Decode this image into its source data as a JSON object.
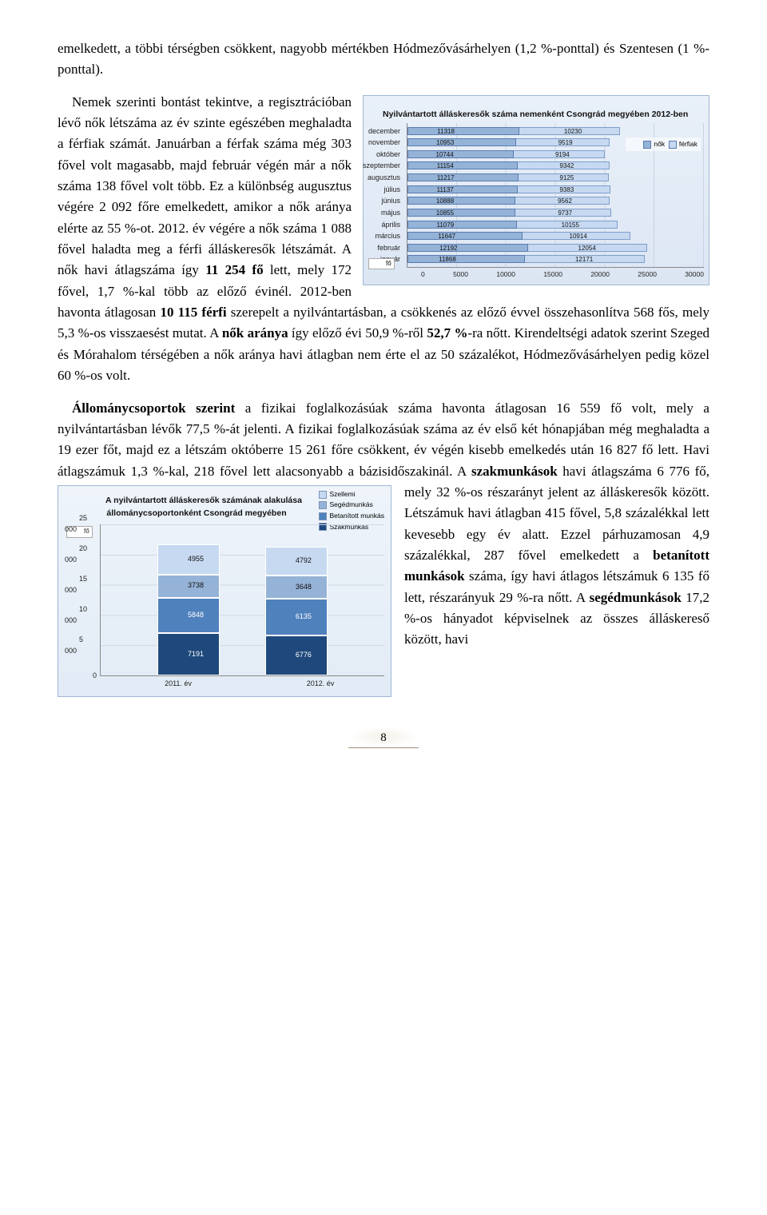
{
  "para1": "emelkedett, a többi térségben csökkent, nagyobb mértékben Hódmezővásárhelyen (1,2 %-ponttal) és Szentesen (1 %-ponttal).",
  "para2_lead": "Nemek szerinti bontást tekintve, a regisztrációban lévő nők létszáma az év szinte egészében meghaladta a férfiak számát. Januárban a férfak száma még 303 fővel volt magasabb, majd február végén már a nők száma 138 fővel volt több. Ez a különbség augusztus végére 2 092 főre emelkedett, amikor a nők aránya elérte az 55 %-ot. 2012. év végére a nők száma 1 088 fővel haladta meg a férfi álláskeresők létszámát. A nők havi átlagszáma így ",
  "para2_b1": "11 254 fő",
  "para2_mid": " lett, mely 172 fővel, 1,7 %-kal több az előző évinél. 2012-ben havonta átlagosan ",
  "para2_b2": "10 115 férfi",
  "para2_mid2": " szerepelt a nyilvántartásban, a csökkenés az előző évvel összehasonlítva 568 fős, mely 5,3 %-os visszaesést mutat. A ",
  "para2_b3": "nők aránya",
  "para2_mid3": " így előző évi 50,9 %-ről ",
  "para2_b4": "52,7 %",
  "para2_tail": "-ra nőtt. Kirendeltségi adatok szerint Szeged és Mórahalom térségében a nők aránya havi átlagban nem érte el az 50 százalékot, Hódmezővásárhelyen pedig közel 60 %-os volt.",
  "para3_lead": "Állománycsoportok szerint",
  "para3_mid": " a fizikai foglalkozásúak száma havonta átlagosan 16 559 fő volt, mely a nyilvántartásban lévők 77,5 %-át jelenti. A fizikai foglalkozásúak száma az év első két hónapjában még meghaladta a 19 ezer főt, majd ez a létszám októberre 15 261 főre csökkent, év végén kisebb emelkedés után 16 827 fő lett. Havi átlagszámuk 1,3 %-kal, 218 fővel lett alacsonyabb a bázisidőszakinál. A ",
  "para3_b1": "szakmunkások",
  "para3_mid2": " havi átlagszáma 6 776 fő, mely 32 %-os részarányt jelent az álláskeresők között. Létszámuk havi átlagban 415 fővel, 5,8 százalékkal lett kevesebb egy év alatt. Ezzel párhuzamosan 4,9 százalékkal, 287 fővel emelkedett a ",
  "para3_b2": "betanított munkások",
  "para3_mid3": " száma, így havi átlagos létszámuk 6 135 fő lett, részarányuk 29 %-ra nőtt. A ",
  "para3_b3": "segédmunkások",
  "para3_tail": " 17,2 %-os hányadot képviselnek az összes álláskereső között, havi",
  "chart1": {
    "title": "Nyilvántartott álláskeresők száma nemenként Csongrád megyében 2012-ben",
    "months": [
      "december",
      "november",
      "október",
      "szeptember",
      "augusztus",
      "július",
      "június",
      "május",
      "április",
      "március",
      "február",
      "január"
    ],
    "series": {
      "nok": "nők",
      "ferfiak": "férfiak"
    },
    "rows": [
      {
        "m": "december",
        "a": 11318,
        "b": 10230
      },
      {
        "m": "november",
        "a": 10953,
        "b": 9519
      },
      {
        "m": "október",
        "a": 10744,
        "b": 9194
      },
      {
        "m": "szeptember",
        "a": 11154,
        "b": 9342
      },
      {
        "m": "augusztus",
        "a": 11217,
        "b": 9125
      },
      {
        "m": "július",
        "a": 11137,
        "b": 9383
      },
      {
        "m": "június",
        "a": 10888,
        "b": 9562
      },
      {
        "m": "május",
        "a": 10855,
        "b": 9737
      },
      {
        "m": "április",
        "a": 11079,
        "b": 10155
      },
      {
        "m": "március",
        "a": 11647,
        "b": 10914
      },
      {
        "m": "február",
        "a": 12192,
        "b": 12054
      },
      {
        "m": "január",
        "a": 11868,
        "b": 12171
      }
    ],
    "xmax": 30000,
    "xticks": [
      "0",
      "5000",
      "10000",
      "15000",
      "20000",
      "25000",
      "30000"
    ],
    "colors": {
      "nok": "#95b3d7",
      "ferfiak": "#c6d9f1"
    },
    "unit": "fő"
  },
  "chart2": {
    "title": "A nyilvántartott álláskeresők számának alakulása állománycsoportonként Csongrád megyében",
    "legend": [
      "Szellemi",
      "Segédmunkás",
      "Betanított munkás",
      "Szakmunkás"
    ],
    "colors": [
      "#c6d9f1",
      "#95b3d7",
      "#4f81bd",
      "#1f497d"
    ],
    "ymax": 25000,
    "yticks": [
      "25 000",
      "20 000",
      "15 000",
      "10 000",
      "5 000",
      "0"
    ],
    "unit": "fő",
    "bars": [
      {
        "label": "2011. év",
        "vals": [
          4955,
          3738,
          5848,
          7191
        ]
      },
      {
        "label": "2012. év",
        "vals": [
          4792,
          3648,
          6135,
          6776
        ]
      }
    ]
  },
  "pagenum": "8"
}
